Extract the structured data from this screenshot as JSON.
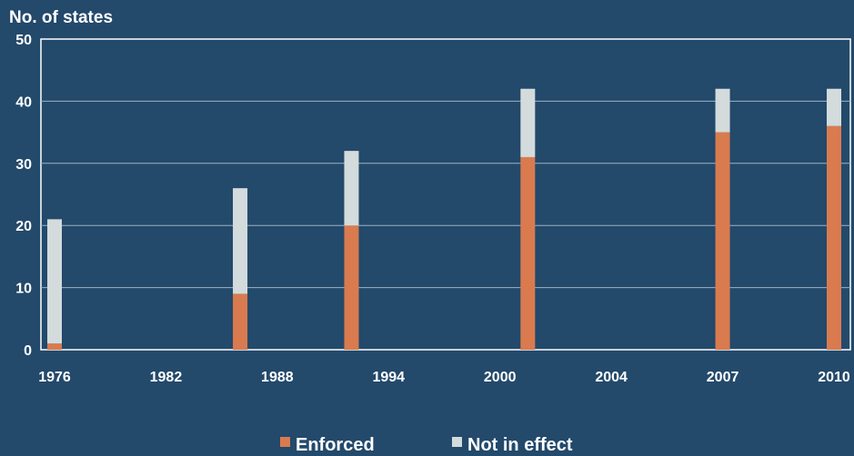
{
  "chart_data": {
    "type": "bar",
    "stacked": true,
    "ylabel": "No. of states",
    "xlabel": "",
    "title": "",
    "ylim": [
      0,
      50
    ],
    "yticks": [
      0,
      10,
      20,
      30,
      40,
      50
    ],
    "xlim": [
      1976,
      2010
    ],
    "xticks": [
      "1976",
      "1982",
      "1988",
      "1994",
      "2000",
      "2004",
      "2007",
      "2010"
    ],
    "categories": [
      "1976",
      "1986",
      "1992",
      "2001",
      "2007",
      "2010"
    ],
    "series": [
      {
        "name": "Enforced",
        "color": "#d97b4f",
        "values": [
          1,
          9,
          20,
          31,
          35,
          36
        ]
      },
      {
        "name": "Not in effect",
        "color": "#d3dbdc",
        "values": [
          20,
          17,
          12,
          11,
          7,
          6
        ]
      }
    ],
    "grid": true,
    "legend": "bottom"
  }
}
